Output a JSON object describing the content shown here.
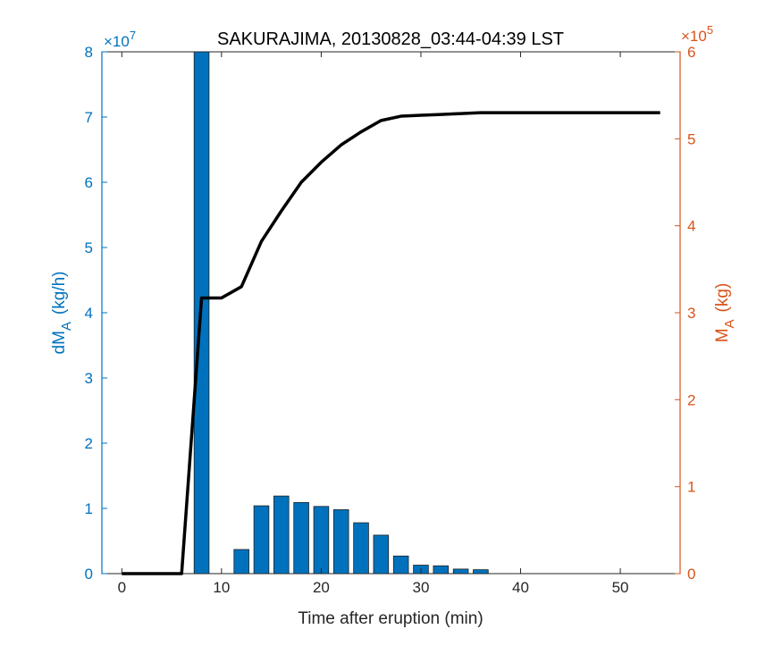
{
  "chart_data": {
    "type": "bar+line",
    "title": "SAKURAJIMA, 20130828_03:44-04:39 LST",
    "xlabel": "Time after eruption (min)",
    "xlim": [
      -2,
      56
    ],
    "xticks": [
      "0",
      "10",
      "20",
      "30",
      "40",
      "50"
    ],
    "left_axis": {
      "label_main": "dM",
      "label_sub": "A",
      "label_unit": "(kg/h)",
      "exponent_prefix": "×10",
      "exponent_power": "7",
      "ylim": [
        0,
        8
      ],
      "ticks": [
        "0",
        "1",
        "2",
        "3",
        "4",
        "5",
        "6",
        "7",
        "8"
      ],
      "color": "#0072BD"
    },
    "right_axis": {
      "label_main": "M",
      "label_sub": "A",
      "label_unit": "(kg)",
      "exponent_prefix": "×10",
      "exponent_power": "5",
      "ylim": [
        0,
        6
      ],
      "ticks": [
        "0",
        "1",
        "2",
        "3",
        "4",
        "5",
        "6"
      ],
      "color": "#D95319"
    },
    "bars": {
      "name": "",
      "color": "#0072BD",
      "width": 1.5,
      "x": [
        8,
        12,
        14,
        16,
        18,
        20,
        22,
        24,
        26,
        28,
        30,
        32,
        34,
        36
      ],
      "values": [
        8.0,
        0.37,
        1.04,
        1.19,
        1.09,
        1.03,
        0.98,
        0.78,
        0.59,
        0.27,
        0.13,
        0.12,
        0.07,
        0.06
      ]
    },
    "line": {
      "name": "",
      "color": "#000000",
      "x": [
        0,
        2,
        4,
        6,
        8,
        10,
        12,
        14,
        16,
        18,
        20,
        22,
        24,
        26,
        28,
        30,
        32,
        34,
        36,
        38,
        40,
        42,
        44,
        46,
        48,
        50,
        52,
        54
      ],
      "values": [
        0,
        0,
        0,
        0,
        3.17,
        3.17,
        3.3,
        3.82,
        4.17,
        4.5,
        4.73,
        4.93,
        5.08,
        5.21,
        5.26,
        5.27,
        5.28,
        5.29,
        5.3,
        5.3,
        5.3,
        5.3,
        5.3,
        5.3,
        5.3,
        5.3,
        5.3,
        5.3
      ]
    },
    "grid": false,
    "legend": "none"
  }
}
